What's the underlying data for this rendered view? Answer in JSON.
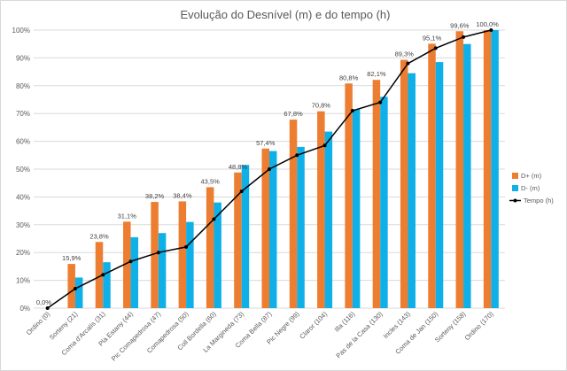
{
  "chart_data": {
    "type": "bar",
    "title": "Evolução do Desnível (m) e do tempo (h)",
    "xlabel": "",
    "ylabel": "",
    "ylim": [
      0,
      100
    ],
    "yticks": [
      "0%",
      "10%",
      "20%",
      "30%",
      "40%",
      "50%",
      "60%",
      "70%",
      "80%",
      "90%",
      "100%"
    ],
    "grid": true,
    "legend_position": "right",
    "categories": [
      "Ordino (0)",
      "Sorteny (21)",
      "Coma d'Arcalís (31)",
      "Pla Estany (44)",
      "Pic Comapedrosa (47)",
      "Comapedrosa (50)",
      "Coll Bordella (60)",
      "La Margineda (73)",
      "Coma Bella (87)",
      "Pic Negre (99)",
      "Claror (104)",
      "Illa (116)",
      "Pas de la Casa (130)",
      "Incles (143)",
      "Coma de Jan (150)",
      "Sorteny (158)",
      "Ordino (170)"
    ],
    "series": [
      {
        "name": "D+ (m)",
        "kind": "bar",
        "color": "#ED7D31",
        "values": [
          0,
          15.9,
          23.8,
          31.1,
          38.2,
          38.4,
          43.5,
          48.8,
          57.4,
          67.8,
          70.8,
          80.8,
          82.1,
          89.3,
          95.1,
          99.6,
          100.0
        ],
        "labels": [
          "0,0%",
          "15,9%",
          "23,8%",
          "31,1%",
          "38,2%",
          "38,4%",
          "43,5%",
          "48,8%",
          "57,4%",
          "67,8%",
          "70,8%",
          "80,8%",
          "82,1%",
          "89,3%",
          "95,1%",
          "99,6%",
          "100,0%"
        ]
      },
      {
        "name": "D- (m)",
        "kind": "bar",
        "color": "#0FB0E8",
        "values": [
          0,
          11,
          16.5,
          25.5,
          27,
          31,
          38,
          51.5,
          56.5,
          58,
          63.5,
          71.5,
          76,
          84.5,
          88.5,
          95,
          100
        ]
      },
      {
        "name": "Tempo (h)",
        "kind": "line",
        "color": "#000000",
        "values": [
          0,
          7,
          12,
          16.8,
          20,
          22,
          32,
          42,
          50,
          55,
          58.5,
          71,
          74,
          88,
          93.5,
          97.5,
          100
        ]
      }
    ]
  }
}
